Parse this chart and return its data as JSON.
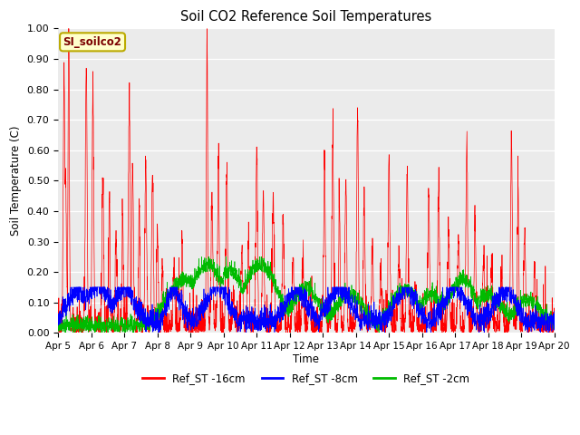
{
  "title": "Soil CO2 Reference Soil Temperatures",
  "ylabel": "Soil Temperature (C)",
  "xlabel": "Time",
  "annotation": "SI_soilco2",
  "ylim": [
    0.0,
    1.0
  ],
  "yticks": [
    0.0,
    0.1,
    0.2,
    0.3,
    0.4,
    0.5,
    0.6,
    0.7,
    0.8,
    0.9,
    1.0
  ],
  "xtick_labels": [
    "Apr 5",
    "Apr 6",
    "Apr 7",
    "Apr 8",
    "Apr 9",
    "Apr 10",
    "Apr 11",
    "Apr 12",
    "Apr 13",
    "Apr 14",
    "Apr 15",
    "Apr 16",
    "Apr 17",
    "Apr 18",
    "Apr 19",
    "Apr 20"
  ],
  "colors": {
    "red": "#ff0000",
    "blue": "#0000ff",
    "green": "#00bb00",
    "background": "#ebebeb",
    "annotation_bg": "#ffffcc",
    "annotation_border": "#bbaa00"
  },
  "legend": [
    {
      "label": "Ref_ST -16cm",
      "color": "#ff0000"
    },
    {
      "label": "Ref_ST -8cm",
      "color": "#0000ff"
    },
    {
      "label": "Ref_ST -2cm",
      "color": "#00bb00"
    }
  ],
  "n_points": 3000,
  "duration_days": 15,
  "seed": 7
}
